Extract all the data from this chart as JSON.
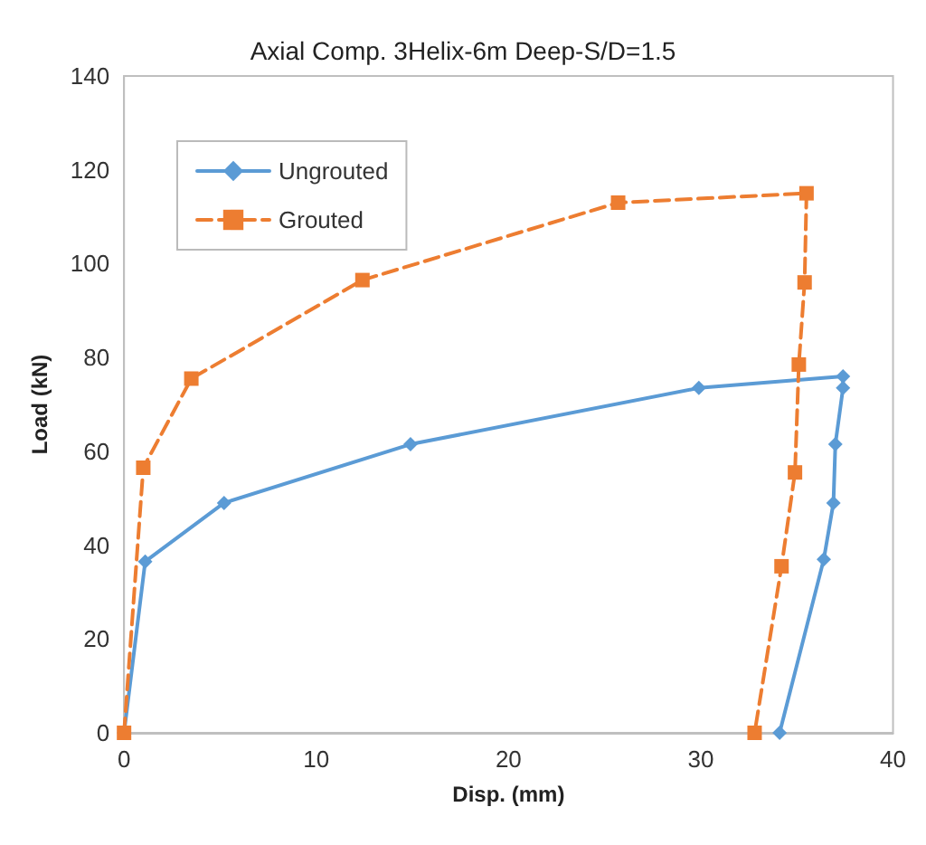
{
  "chart_data": {
    "type": "line",
    "title": "Axial Comp. 3Helix-6m Deep-S/D=1.5",
    "xlabel": "Disp. (mm)",
    "ylabel": "Load (kN)",
    "xlim": [
      0,
      40
    ],
    "xticks": [
      0,
      10,
      20,
      30,
      40
    ],
    "ylim": [
      0,
      140
    ],
    "yticks": [
      0,
      20,
      40,
      60,
      80,
      100,
      120,
      140
    ],
    "grid": false,
    "legend": "top left",
    "series": [
      {
        "name": "Ungrouted",
        "color": "#5b9bd5",
        "marker": "diamond",
        "line_style": "solid",
        "x": [
          0,
          1.1,
          5.2,
          14.9,
          29.9,
          37.4,
          37.4,
          37.0,
          36.9,
          36.4,
          34.1
        ],
        "values": [
          0,
          36.5,
          49,
          61.5,
          73.5,
          76,
          73.5,
          61.5,
          49,
          37,
          0
        ]
      },
      {
        "name": "Grouted",
        "color": "#ed7d31",
        "marker": "square",
        "line_style": "dashed",
        "x": [
          0,
          1.0,
          3.5,
          12.4,
          25.7,
          35.5,
          35.4,
          35.1,
          34.9,
          34.2,
          32.8
        ],
        "values": [
          0,
          56.5,
          75.5,
          96.5,
          113,
          115,
          96,
          78.5,
          55.5,
          35.5,
          0
        ]
      }
    ]
  }
}
